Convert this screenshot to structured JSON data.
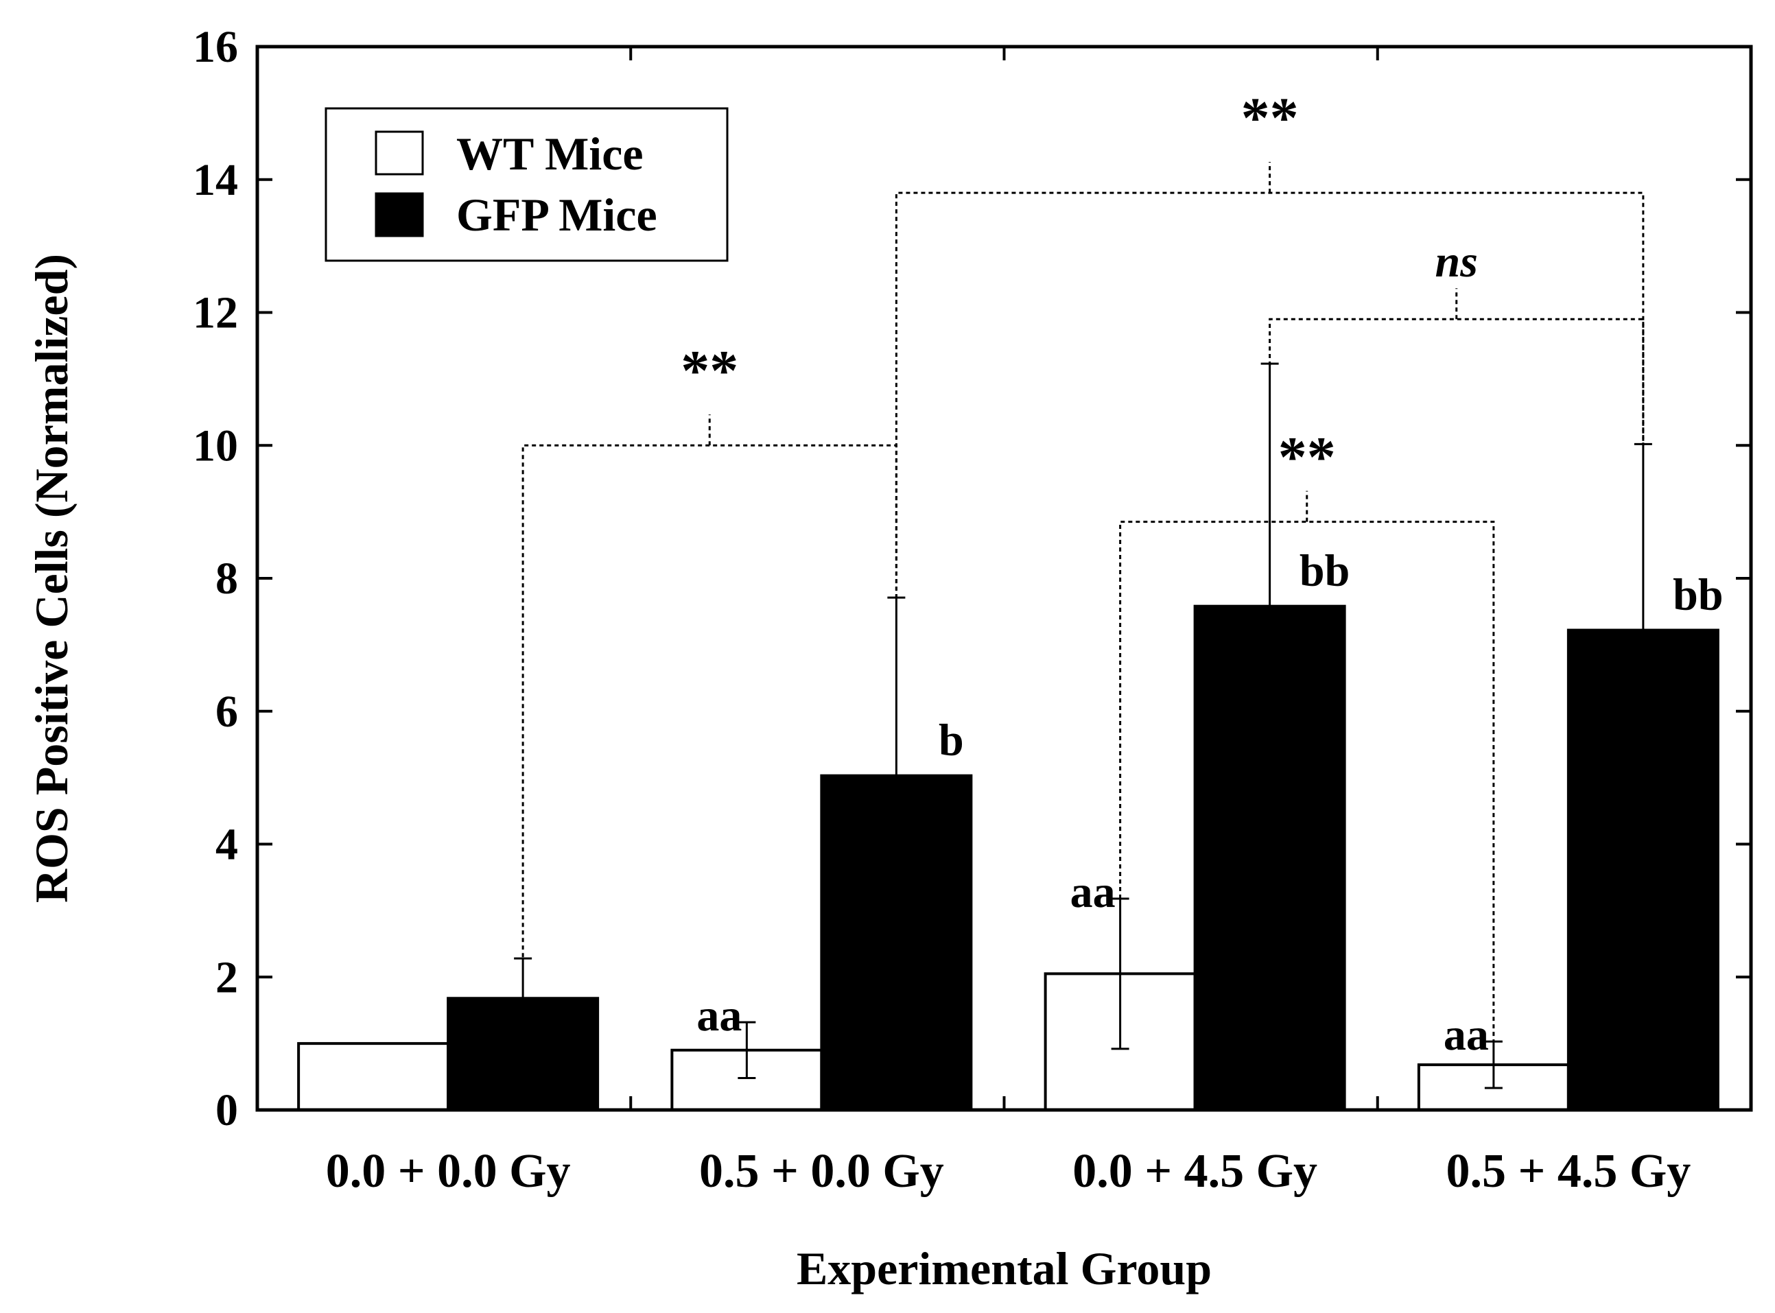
{
  "chart_data": {
    "type": "bar",
    "title": "",
    "xlabel": "Experimental Group",
    "ylabel": "ROS Positive Cells (Normalized)",
    "ylim": [
      0,
      16
    ],
    "yticks": [
      0,
      2,
      4,
      6,
      8,
      10,
      12,
      14,
      16
    ],
    "ytick_labels": [
      "0",
      "2",
      "4",
      "6",
      "8",
      "10",
      "12",
      "14",
      "16"
    ],
    "categories": [
      "0.0 + 0.0 Gy",
      "0.5 + 0.0 Gy",
      "0.0 + 4.5 Gy",
      "0.5 + 4.5 Gy"
    ],
    "grid": false,
    "legend_position": "top-left",
    "series": [
      {
        "name": "WT Mice",
        "fill": "#ffffff",
        "values": [
          1.0,
          0.9,
          2.05,
          0.68
        ],
        "errors": [
          0.0,
          0.42,
          1.13,
          0.35
        ],
        "labels": [
          "",
          "aa",
          "aa",
          "aa"
        ]
      },
      {
        "name": "GFP Mice",
        "fill": "#000000",
        "values": [
          1.68,
          5.03,
          7.58,
          7.22
        ],
        "errors": [
          0.6,
          2.68,
          3.65,
          2.8
        ],
        "labels": [
          "",
          "b",
          "bb",
          "bb"
        ]
      }
    ],
    "annotations": [
      {
        "text": "**",
        "italic": false,
        "from": {
          "cat": 0,
          "series": 1
        },
        "to": {
          "cat": 1,
          "series": 1
        },
        "level": 10.0,
        "from_end": 2.3,
        "to_end": 7.7,
        "label_value": 11.15
      },
      {
        "text": "**",
        "italic": false,
        "from": {
          "cat": 1,
          "series": 1
        },
        "to": {
          "cat": 3,
          "series": 1
        },
        "level": 13.8,
        "from_end": 7.7,
        "to_end": 10.0,
        "label_value": 14.95
      },
      {
        "text": "ns",
        "italic": true,
        "from": {
          "cat": 2,
          "series": 1
        },
        "to": {
          "cat": 3,
          "series": 1
        },
        "level": 11.9,
        "from_end": 11.2,
        "to_end": 10.0,
        "label_value": 12.85
      },
      {
        "text": "**",
        "italic": false,
        "from": {
          "cat": 2,
          "series": 0
        },
        "to": {
          "cat": 3,
          "series": 0
        },
        "level": 8.85,
        "from_end": 3.18,
        "to_end": 1.03,
        "label_value": 9.85
      }
    ],
    "colors": {
      "axis": "#000000",
      "wt_fill": "#ffffff",
      "gfp_fill": "#000000",
      "background": "#ffffff"
    }
  }
}
